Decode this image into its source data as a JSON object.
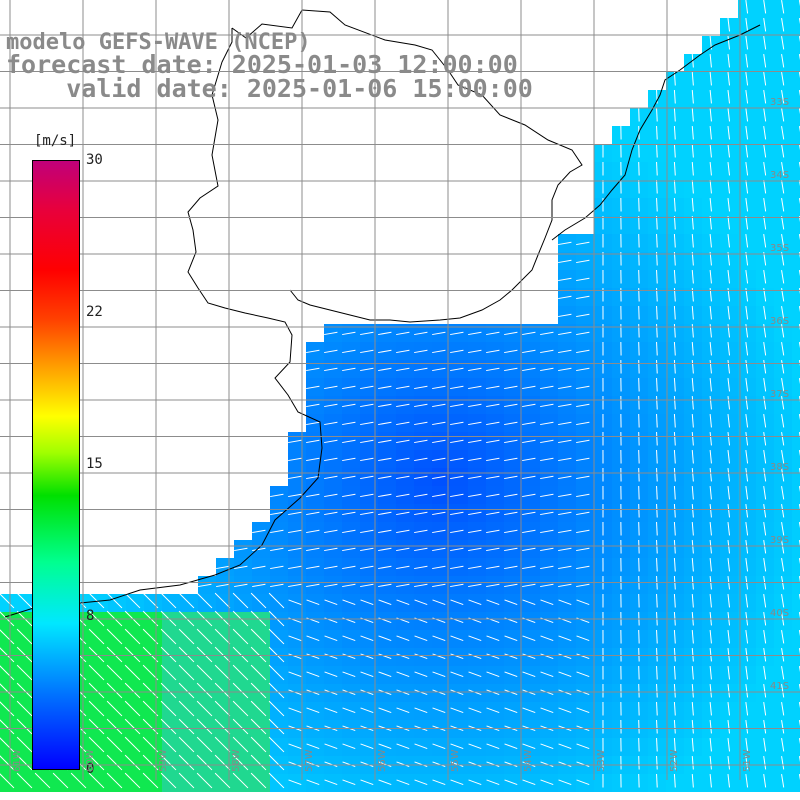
{
  "title": {
    "line1": "modelo GEFS-WAVE (NCEP)",
    "line2": "forecast date: 2025-01-03 12:00:00",
    "line3": "valid date: 2025-01-06 15:00:00"
  },
  "colorbar": {
    "unit": "[m/s]",
    "ticks": [
      {
        "value": 30,
        "label": "30"
      },
      {
        "value": 22,
        "label": "22"
      },
      {
        "value": 15,
        "label": "15"
      },
      {
        "value": 8,
        "label": "8"
      },
      {
        "value": 0,
        "label": "0"
      }
    ],
    "min": 0,
    "max": 30
  },
  "lat_labels": [
    "33S",
    "34S",
    "35S",
    "36S",
    "37S",
    "38S",
    "39S",
    "40S",
    "41S"
  ],
  "lon_labels": [
    "61W",
    "60W",
    "59W",
    "58W",
    "57W",
    "56W",
    "55W",
    "54W",
    "53W",
    "52W",
    "51W"
  ],
  "colors": {
    "land": "#ffffff",
    "coast": "#000000",
    "grid": "#8c8c8c",
    "arrow": "#ffffff",
    "title": "#8a8a8a"
  }
}
